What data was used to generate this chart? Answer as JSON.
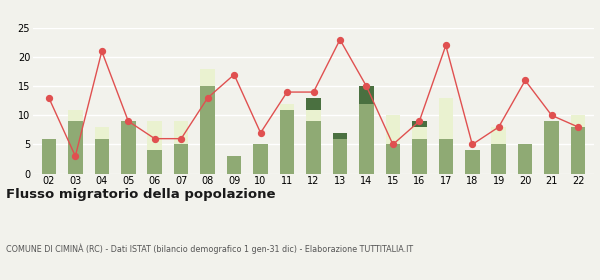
{
  "years": [
    "02",
    "03",
    "04",
    "05",
    "06",
    "07",
    "08",
    "09",
    "10",
    "11",
    "12",
    "13",
    "14",
    "15",
    "16",
    "17",
    "18",
    "19",
    "20",
    "21",
    "22"
  ],
  "iscritti_altri_comuni": [
    6,
    9,
    6,
    9,
    4,
    5,
    15,
    3,
    5,
    11,
    9,
    6,
    12,
    5,
    6,
    6,
    4,
    5,
    5,
    9,
    8
  ],
  "iscritti_estero": [
    0,
    2,
    2,
    0,
    5,
    4,
    3,
    0,
    0,
    1,
    2,
    0,
    0,
    5,
    2,
    7,
    0,
    3,
    0,
    0,
    2
  ],
  "iscritti_altri": [
    0,
    0,
    0,
    0,
    0,
    0,
    0,
    0,
    0,
    0,
    2,
    1,
    3,
    0,
    1,
    0,
    0,
    0,
    0,
    0,
    0
  ],
  "cancellati": [
    13,
    3,
    21,
    9,
    6,
    6,
    13,
    17,
    7,
    14,
    14,
    23,
    15,
    5,
    9,
    22,
    5,
    8,
    16,
    10,
    8
  ],
  "color_altri_comuni": "#8faa74",
  "color_estero": "#eaf2d0",
  "color_altri": "#4a7040",
  "color_cancellati": "#e05050",
  "color_grid": "#ffffff",
  "ylim": [
    0,
    25
  ],
  "yticks": [
    0,
    5,
    10,
    15,
    20,
    25
  ],
  "title": "Flusso migratorio della popolazione",
  "subtitle": "COMUNE DI CIMINÀ (RC) - Dati ISTAT (bilancio demografico 1 gen-31 dic) - Elaborazione TUTTITALIA.IT",
  "bg_color": "#f2f2ec"
}
